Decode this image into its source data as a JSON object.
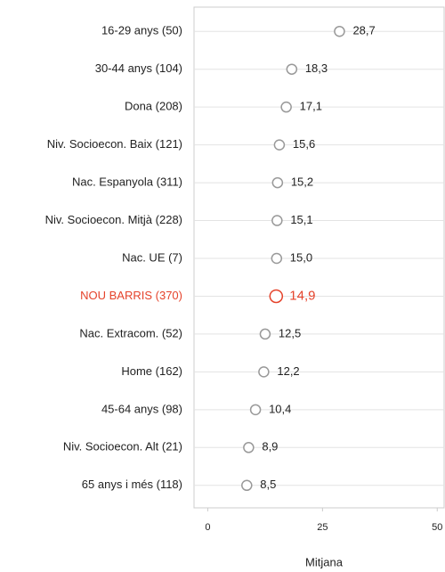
{
  "chart_data": {
    "type": "dot",
    "categories": [
      "16-29 anys (50)",
      "30-44 anys (104)",
      "Dona (208)",
      "Niv. Socioecon. Baix (121)",
      "Nac. Espanyola (311)",
      "Niv. Socioecon. Mitjà (228)",
      "Nac. UE (7)",
      "NOU BARRIS (370)",
      "Nac. Extracom. (52)",
      "Home (162)",
      "45-64 anys (98)",
      "Niv. Socioecon. Alt (21)",
      "65 anys i més (118)"
    ],
    "values": [
      28.7,
      18.3,
      17.1,
      15.6,
      15.2,
      15.1,
      15.0,
      14.9,
      12.5,
      12.2,
      10.4,
      8.9,
      8.5
    ],
    "value_labels": [
      "28,7",
      "18,3",
      "17,1",
      "15,6",
      "15,2",
      "15,1",
      "15,0",
      "14,9",
      "12,5",
      "12,2",
      "10,4",
      "8,9",
      "8,5"
    ],
    "colors": [
      "#999999",
      "#999999",
      "#999999",
      "#999999",
      "#999999",
      "#999999",
      "#999999",
      "#e5432b",
      "#999999",
      "#999999",
      "#999999",
      "#999999",
      "#999999"
    ],
    "xlabel": "Mitjana",
    "xlim": [
      -3,
      51.5
    ],
    "xticks": [
      0,
      25,
      50
    ],
    "grid": true
  }
}
